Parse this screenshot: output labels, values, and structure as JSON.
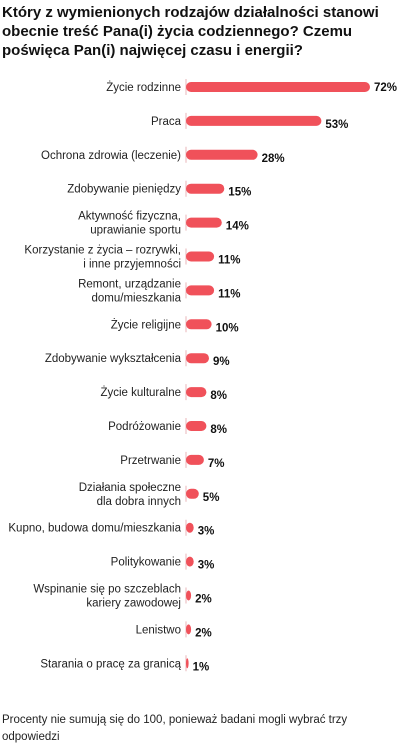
{
  "title": "Który z wymienionych rodzajów działalności stanowi obecnie treść Pana(i) życia codziennego? Czemu poświęca Pan(i) najwięcej czasu i energii?",
  "footnote": "Procenty nie sumują się do 100, ponieważ badani mogli wybrać trzy odpowiedzi",
  "colors": {
    "bar": "#f0515a",
    "axis": "#e8b4b8"
  },
  "chart_data": {
    "type": "bar",
    "orientation": "horizontal",
    "unit": "%",
    "categories": [
      [
        "Życie rodzinne"
      ],
      [
        "Praca"
      ],
      [
        "Ochrona zdrowia (leczenie)"
      ],
      [
        "Zdobywanie pieniędzy"
      ],
      [
        "Aktywność fizyczna,",
        "uprawianie sportu"
      ],
      [
        "Korzystanie z życia – rozrywki,",
        "i inne przyjemności"
      ],
      [
        "Remont, urządzanie",
        "domu/mieszkania"
      ],
      [
        "Życie religijne"
      ],
      [
        "Zdobywanie wykształcenia"
      ],
      [
        "Życie kulturalne"
      ],
      [
        "Podróżowanie"
      ],
      [
        "Przetrwanie"
      ],
      [
        "Działania społeczne",
        "dla dobra innych"
      ],
      [
        "Kupno, budowa domu/mieszkania"
      ],
      [
        "Politykowanie"
      ],
      [
        "Wspinanie się  po szczeblach",
        "kariery zawodowej"
      ],
      [
        "Lenistwo"
      ],
      [
        "Starania o pracę za granicą"
      ]
    ],
    "values": [
      72,
      53,
      28,
      15,
      14,
      11,
      11,
      10,
      9,
      8,
      8,
      7,
      5,
      3,
      3,
      2,
      2,
      1
    ],
    "value_labels": [
      "72%",
      "53%",
      "28%",
      "15%",
      "14%",
      "11%",
      "11%",
      "10%",
      "9%",
      "8%",
      "8%",
      "7%",
      "5%",
      "3%",
      "3%",
      "2%",
      "2%",
      "1%"
    ],
    "xlim": [
      0,
      72
    ],
    "grid": false,
    "legend": "none"
  }
}
